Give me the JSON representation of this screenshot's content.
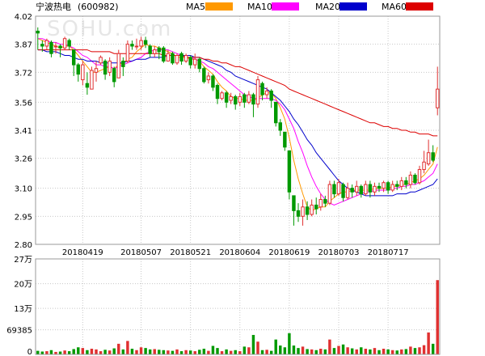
{
  "header": {
    "stock_name": "宁波热电",
    "stock_code": "(600982)"
  },
  "watermark": "SOHU.com",
  "legend": [
    {
      "name": "MA5",
      "color": "#ff9900"
    },
    {
      "name": "MA10",
      "color": "#ff00ff"
    },
    {
      "name": "MA20",
      "color": "#0000cc"
    },
    {
      "name": "MA60",
      "color": "#dd0000"
    }
  ],
  "colors": {
    "up": "#e03030",
    "down": "#009900",
    "grid": "#c8c8c8",
    "frame": "#999999"
  },
  "chart_data": [
    {
      "type": "candlestick",
      "ylim": [
        2.8,
        4.02
      ],
      "yticks": [
        "4.02",
        "3.87",
        "3.72",
        "3.56",
        "3.41",
        "3.26",
        "3.10",
        "2.95",
        "2.80"
      ],
      "xlabels": [
        {
          "label": "20180419",
          "index": 10
        },
        {
          "label": "20180507",
          "index": 23
        },
        {
          "label": "20180521",
          "index": 34
        },
        {
          "label": "20180604",
          "index": 45
        },
        {
          "label": "20180619",
          "index": 56
        },
        {
          "label": "20180703",
          "index": 67
        },
        {
          "label": "20180717",
          "index": 78
        }
      ],
      "candles": [
        [
          3.94,
          3.93,
          3.96,
          3.84
        ],
        [
          3.87,
          3.86,
          3.89,
          3.83
        ],
        [
          3.86,
          3.89,
          3.9,
          3.84
        ],
        [
          3.88,
          3.82,
          3.89,
          3.8
        ],
        [
          3.86,
          3.86,
          3.88,
          3.82
        ],
        [
          3.86,
          3.85,
          3.87,
          3.8
        ],
        [
          3.85,
          3.9,
          3.91,
          3.84
        ],
        [
          3.89,
          3.86,
          3.9,
          3.84
        ],
        [
          3.84,
          3.76,
          3.84,
          3.7
        ],
        [
          3.76,
          3.71,
          3.77,
          3.67
        ],
        [
          3.68,
          3.76,
          3.78,
          3.65
        ],
        [
          3.66,
          3.64,
          3.72,
          3.6
        ],
        [
          3.63,
          3.73,
          3.75,
          3.63
        ],
        [
          3.72,
          3.74,
          3.78,
          3.67
        ],
        [
          3.77,
          3.8,
          3.81,
          3.76
        ],
        [
          3.78,
          3.71,
          3.79,
          3.68
        ],
        [
          3.72,
          3.78,
          3.8,
          3.7
        ],
        [
          3.74,
          3.67,
          3.75,
          3.64
        ],
        [
          3.69,
          3.82,
          3.84,
          3.69
        ],
        [
          3.78,
          3.75,
          3.8,
          3.7
        ],
        [
          3.78,
          3.87,
          3.89,
          3.77
        ],
        [
          3.87,
          3.86,
          3.89,
          3.84
        ],
        [
          3.86,
          3.86,
          3.9,
          3.84
        ],
        [
          3.86,
          3.89,
          3.91,
          3.84
        ],
        [
          3.89,
          3.87,
          3.91,
          3.85
        ],
        [
          3.86,
          3.82,
          3.87,
          3.8
        ],
        [
          3.82,
          3.84,
          3.86,
          3.8
        ],
        [
          3.85,
          3.83,
          3.86,
          3.79
        ],
        [
          3.85,
          3.78,
          3.86,
          3.77
        ],
        [
          3.78,
          3.82,
          3.84,
          3.78
        ],
        [
          3.82,
          3.77,
          3.83,
          3.76
        ],
        [
          3.77,
          3.81,
          3.82,
          3.76
        ],
        [
          3.82,
          3.78,
          3.83,
          3.76
        ],
        [
          3.78,
          3.81,
          3.82,
          3.77
        ],
        [
          3.8,
          3.76,
          3.81,
          3.74
        ],
        [
          3.76,
          3.79,
          3.82,
          3.74
        ],
        [
          3.79,
          3.74,
          3.8,
          3.72
        ],
        [
          3.74,
          3.67,
          3.75,
          3.66
        ],
        [
          3.68,
          3.7,
          3.72,
          3.66
        ],
        [
          3.7,
          3.64,
          3.71,
          3.62
        ],
        [
          3.65,
          3.58,
          3.66,
          3.55
        ],
        [
          3.58,
          3.61,
          3.62,
          3.57
        ],
        [
          3.61,
          3.56,
          3.62,
          3.53
        ],
        [
          3.57,
          3.59,
          3.61,
          3.55
        ],
        [
          3.59,
          3.55,
          3.6,
          3.52
        ],
        [
          3.56,
          3.59,
          3.61,
          3.54
        ],
        [
          3.6,
          3.56,
          3.61,
          3.53
        ],
        [
          3.56,
          3.6,
          3.62,
          3.55
        ],
        [
          3.6,
          3.55,
          3.61,
          3.48
        ],
        [
          3.55,
          3.68,
          3.7,
          3.53
        ],
        [
          3.66,
          3.6,
          3.67,
          3.57
        ],
        [
          3.6,
          3.62,
          3.64,
          3.58
        ],
        [
          3.62,
          3.57,
          3.63,
          3.53
        ],
        [
          3.56,
          3.45,
          3.56,
          3.43
        ],
        [
          3.45,
          3.41,
          3.47,
          3.38
        ],
        [
          3.4,
          3.32,
          3.4,
          3.3
        ],
        [
          3.3,
          3.08,
          3.3,
          3.04
        ],
        [
          3.06,
          2.98,
          3.06,
          2.9
        ],
        [
          2.98,
          2.95,
          3.02,
          2.92
        ],
        [
          2.95,
          3.0,
          3.04,
          2.9
        ],
        [
          3.0,
          2.96,
          3.03,
          2.93
        ],
        [
          2.96,
          3.01,
          3.04,
          2.95
        ],
        [
          3.01,
          2.99,
          3.05,
          2.96
        ],
        [
          3.0,
          3.04,
          3.07,
          2.98
        ],
        [
          3.04,
          3.02,
          3.06,
          3.0
        ],
        [
          3.02,
          3.12,
          3.14,
          3.01
        ],
        [
          3.12,
          3.07,
          3.14,
          3.05
        ],
        [
          3.07,
          3.13,
          3.15,
          3.06
        ],
        [
          3.12,
          3.05,
          3.13,
          3.03
        ],
        [
          3.05,
          3.1,
          3.13,
          3.04
        ],
        [
          3.1,
          3.08,
          3.12,
          3.05
        ],
        [
          3.08,
          3.11,
          3.14,
          3.06
        ],
        [
          3.11,
          3.07,
          3.12,
          3.05
        ],
        [
          3.07,
          3.12,
          3.14,
          3.06
        ],
        [
          3.12,
          3.08,
          3.14,
          3.05
        ],
        [
          3.08,
          3.11,
          3.13,
          3.06
        ],
        [
          3.11,
          3.1,
          3.13,
          3.08
        ],
        [
          3.1,
          3.13,
          3.14,
          3.08
        ],
        [
          3.13,
          3.09,
          3.14,
          3.07
        ],
        [
          3.09,
          3.12,
          3.14,
          3.08
        ],
        [
          3.12,
          3.11,
          3.14,
          3.09
        ],
        [
          3.11,
          3.14,
          3.16,
          3.09
        ],
        [
          3.14,
          3.12,
          3.16,
          3.1
        ],
        [
          3.12,
          3.17,
          3.19,
          3.1
        ],
        [
          3.17,
          3.13,
          3.18,
          3.12
        ],
        [
          3.13,
          3.2,
          3.22,
          3.12
        ],
        [
          3.2,
          3.24,
          3.3,
          3.18
        ],
        [
          3.23,
          3.29,
          3.36,
          3.22
        ],
        [
          3.29,
          3.25,
          3.33,
          3.24
        ],
        [
          3.53,
          3.63,
          3.75,
          3.49
        ]
      ],
      "ma": {
        "MA5": [
          3.9,
          3.89,
          3.88,
          3.87,
          3.86,
          3.85,
          3.86,
          3.86,
          3.84,
          3.81,
          3.78,
          3.75,
          3.72,
          3.72,
          3.73,
          3.74,
          3.75,
          3.74,
          3.76,
          3.77,
          3.79,
          3.8,
          3.83,
          3.85,
          3.87,
          3.86,
          3.86,
          3.85,
          3.84,
          3.83,
          3.82,
          3.8,
          3.8,
          3.8,
          3.79,
          3.79,
          3.78,
          3.75,
          3.73,
          3.71,
          3.67,
          3.64,
          3.62,
          3.59,
          3.58,
          3.58,
          3.57,
          3.57,
          3.57,
          3.58,
          3.6,
          3.61,
          3.61,
          3.58,
          3.53,
          3.47,
          3.37,
          3.25,
          3.15,
          3.07,
          3.0,
          2.98,
          2.99,
          3.0,
          3.0,
          3.03,
          3.05,
          3.07,
          3.08,
          3.08,
          3.09,
          3.09,
          3.09,
          3.09,
          3.09,
          3.1,
          3.1,
          3.1,
          3.1,
          3.11,
          3.11,
          3.12,
          3.12,
          3.13,
          3.14,
          3.15,
          3.17,
          3.2,
          3.23,
          3.32
        ],
        "MA10": [
          3.9,
          3.9,
          3.89,
          3.88,
          3.88,
          3.87,
          3.87,
          3.86,
          3.85,
          3.83,
          3.81,
          3.8,
          3.78,
          3.76,
          3.76,
          3.75,
          3.75,
          3.74,
          3.75,
          3.76,
          3.77,
          3.78,
          3.79,
          3.8,
          3.82,
          3.83,
          3.84,
          3.84,
          3.84,
          3.84,
          3.83,
          3.82,
          3.81,
          3.8,
          3.8,
          3.79,
          3.78,
          3.77,
          3.75,
          3.74,
          3.72,
          3.7,
          3.68,
          3.66,
          3.64,
          3.62,
          3.6,
          3.59,
          3.58,
          3.58,
          3.58,
          3.58,
          3.58,
          3.57,
          3.55,
          3.52,
          3.47,
          3.42,
          3.35,
          3.29,
          3.22,
          3.16,
          3.11,
          3.07,
          3.04,
          3.02,
          3.01,
          3.02,
          3.03,
          3.04,
          3.05,
          3.06,
          3.07,
          3.08,
          3.08,
          3.09,
          3.09,
          3.09,
          3.09,
          3.1,
          3.1,
          3.11,
          3.11,
          3.12,
          3.12,
          3.13,
          3.14,
          3.16,
          3.18,
          3.23
        ],
        "MA20": [
          3.84,
          3.84,
          3.83,
          3.83,
          3.83,
          3.82,
          3.81,
          3.81,
          3.8,
          3.79,
          3.79,
          3.78,
          3.78,
          3.78,
          3.77,
          3.77,
          3.77,
          3.77,
          3.77,
          3.77,
          3.78,
          3.78,
          3.79,
          3.79,
          3.79,
          3.8,
          3.8,
          3.8,
          3.8,
          3.81,
          3.81,
          3.81,
          3.81,
          3.81,
          3.81,
          3.8,
          3.8,
          3.79,
          3.78,
          3.77,
          3.76,
          3.75,
          3.73,
          3.72,
          3.7,
          3.69,
          3.68,
          3.67,
          3.66,
          3.65,
          3.64,
          3.63,
          3.61,
          3.59,
          3.57,
          3.54,
          3.51,
          3.47,
          3.44,
          3.4,
          3.36,
          3.33,
          3.29,
          3.26,
          3.23,
          3.2,
          3.17,
          3.14,
          3.12,
          3.1,
          3.09,
          3.08,
          3.07,
          3.06,
          3.06,
          3.06,
          3.06,
          3.06,
          3.06,
          3.06,
          3.07,
          3.07,
          3.07,
          3.08,
          3.08,
          3.09,
          3.1,
          3.11,
          3.12,
          3.15
        ],
        "MA60": [
          3.84,
          3.84,
          3.84,
          3.84,
          3.84,
          3.84,
          3.84,
          3.84,
          3.84,
          3.84,
          3.84,
          3.84,
          3.83,
          3.83,
          3.83,
          3.83,
          3.83,
          3.82,
          3.82,
          3.82,
          3.82,
          3.82,
          3.82,
          3.82,
          3.82,
          3.82,
          3.82,
          3.82,
          3.81,
          3.81,
          3.81,
          3.81,
          3.81,
          3.8,
          3.8,
          3.8,
          3.8,
          3.79,
          3.79,
          3.78,
          3.78,
          3.77,
          3.77,
          3.76,
          3.75,
          3.75,
          3.74,
          3.73,
          3.72,
          3.71,
          3.7,
          3.69,
          3.68,
          3.67,
          3.66,
          3.65,
          3.63,
          3.62,
          3.61,
          3.6,
          3.59,
          3.58,
          3.57,
          3.56,
          3.55,
          3.54,
          3.53,
          3.52,
          3.51,
          3.5,
          3.49,
          3.48,
          3.47,
          3.46,
          3.45,
          3.45,
          3.44,
          3.43,
          3.43,
          3.42,
          3.42,
          3.41,
          3.41,
          3.4,
          3.4,
          3.39,
          3.39,
          3.39,
          3.38,
          3.38
        ]
      }
    },
    {
      "type": "bar",
      "title": "volume",
      "ylim": [
        0,
        270000
      ],
      "yticks": [
        "27万",
        "20万",
        "13万",
        "69385",
        "0"
      ],
      "ytick_values": [
        270000,
        200000,
        130000,
        69385,
        0
      ],
      "volumes": [
        10000,
        8000,
        9000,
        12000,
        7000,
        8000,
        11000,
        9000,
        15000,
        20000,
        18000,
        12000,
        16000,
        14000,
        9000,
        13000,
        11000,
        17000,
        30000,
        14000,
        38000,
        16000,
        12000,
        20000,
        18000,
        14000,
        15000,
        13000,
        12000,
        11000,
        10000,
        14000,
        9000,
        12000,
        11000,
        9000,
        13000,
        16000,
        10000,
        24000,
        18000,
        9000,
        14000,
        10000,
        12000,
        9000,
        22000,
        20000,
        55000,
        36000,
        12000,
        13000,
        10000,
        42000,
        25000,
        20000,
        60000,
        25000,
        18000,
        22000,
        15000,
        14000,
        12000,
        16000,
        14000,
        42000,
        18000,
        24000,
        28000,
        20000,
        17000,
        14000,
        20000,
        16000,
        14000,
        18000,
        12000,
        16000,
        14000,
        12000,
        11000,
        14000,
        15000,
        22000,
        18000,
        20000,
        26000,
        62000,
        30000,
        210000
      ]
    }
  ]
}
